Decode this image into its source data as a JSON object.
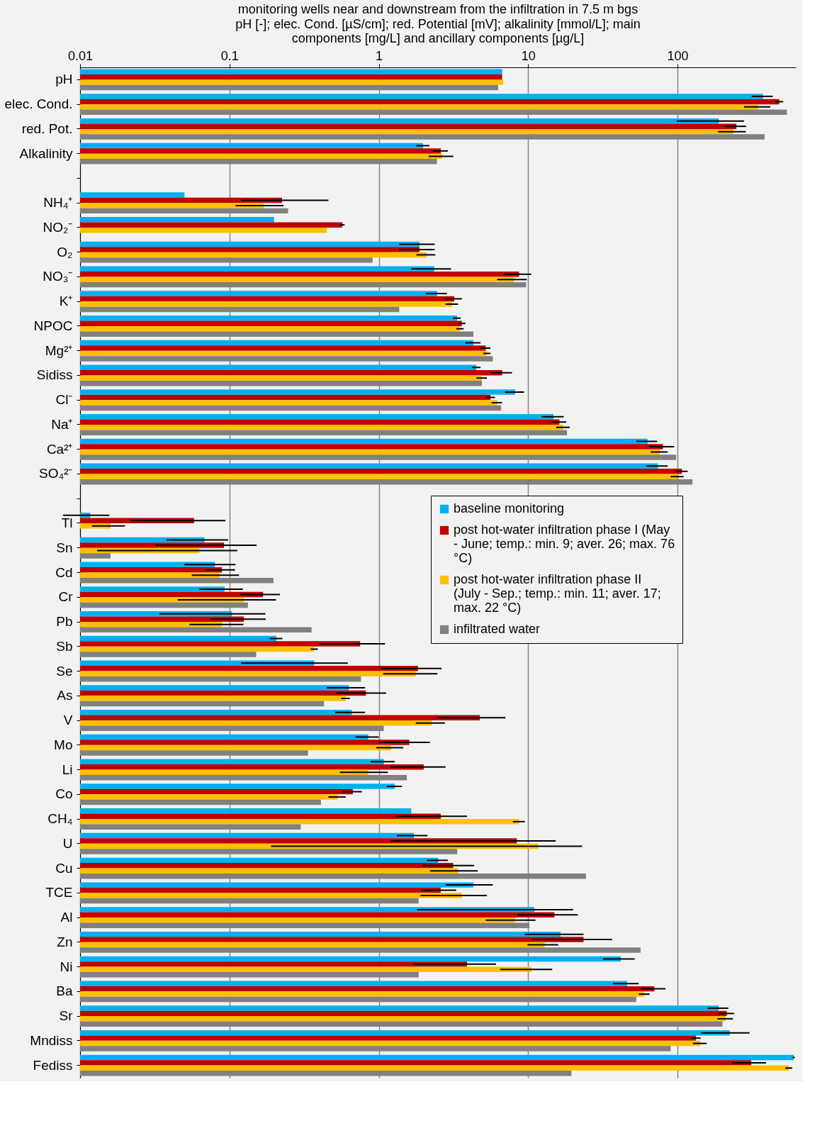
{
  "chart_data": {
    "type": "bar",
    "orientation": "horizontal",
    "title": "monitoring wells near and downstream from the infiltration in 7.5 m bgs",
    "subtitle": "pH [-]; elec. Cond. [µS/cm]; red. Potential [mV]; alkalinity [mmol/L]; main components [mg/L] and ancillary components [µg/L]",
    "categories": [
      "pH",
      "elec. Cond.",
      "red. Pot.",
      "Alkalinity",
      null,
      "NH₄⁺",
      "NO₂⁻",
      "O₂",
      "NO₃⁻",
      "K⁺",
      "NPOC",
      "Mg²⁺",
      "Sidiss",
      "Cl⁻",
      "Na⁺",
      "Ca²⁺",
      "SO₄²⁻",
      null,
      "Tl",
      "Sn",
      "Cd",
      "Cr",
      "Pb",
      "Sb",
      "Se",
      "As",
      "V",
      "Mo",
      "Li",
      "Co",
      "CH₄",
      "U",
      "Cu",
      "TCE",
      "Al",
      "Zn",
      "Ni",
      "Ba",
      "Sr",
      "Mndiss",
      "Fediss"
    ],
    "series": [
      {
        "name": "baseline monitoring",
        "color": "#00b0f0",
        "values": [
          6.7,
          374,
          189,
          1.98,
          null,
          0.05,
          0.199,
          1.87,
          2.35,
          2.46,
          3.34,
          4.3,
          4.5,
          8.2,
          14.8,
          63,
          74,
          null,
          0.0117,
          0.068,
          0.08,
          0.093,
          0.104,
          0.206,
          0.37,
          0.63,
          0.66,
          0.85,
          1.08,
          1.28,
          1.65,
          1.72,
          2.5,
          4.3,
          11,
          16.5,
          41.7,
          46,
          189,
          224,
          600
        ],
        "errors": [
          null,
          60,
          90,
          0.2,
          null,
          null,
          null,
          0.5,
          0.7,
          0.4,
          0.2,
          0.5,
          0.3,
          1.2,
          2.5,
          10,
          12,
          null,
          0.004,
          0.03,
          0.03,
          0.03,
          0.07,
          0.02,
          0.25,
          0.18,
          0.15,
          0.15,
          0.2,
          0.15,
          null,
          0.4,
          0.4,
          1.5,
          [
            1.8,
            20
          ],
          7,
          10,
          9,
          30,
          80,
          10
        ]
      },
      {
        "name": "post hot-water infiltration phase I (May - June; temp.: min. 9; aver. 26; max. 76 °C)",
        "color": "#c00000",
        "values": [
          6.7,
          480,
          248,
          2.6,
          null,
          0.225,
          0.57,
          1.87,
          8.7,
          3.2,
          3.6,
          5.2,
          6.7,
          5.6,
          16.2,
          80,
          107,
          null,
          0.058,
          0.092,
          0.089,
          0.168,
          0.125,
          0.75,
          1.83,
          0.82,
          4.75,
          1.6,
          2.0,
          0.67,
          2.6,
          8.4,
          3.15,
          2.6,
          15,
          23.5,
          3.9,
          70,
          214,
          133,
          312
        ],
        "errors": [
          null,
          30,
          40,
          0.3,
          null,
          [
            0.12,
            0.46
          ],
          0.02,
          0.5,
          1.8,
          0.4,
          0.2,
          0.4,
          1.1,
          0.4,
          1.8,
          15,
          10,
          null,
          0.036,
          0.06,
          0.02,
          0.05,
          0.05,
          0.35,
          0.8,
          0.3,
          2.3,
          0.6,
          0.8,
          0.1,
          1.3,
          [
            1.2,
            15.3
          ],
          1.2,
          0.7,
          6.5,
          13,
          2.2,
          13,
          25,
          10,
          80
        ]
      },
      {
        "name": "post hot-water infiltration phase II  (July - Sep.; temp.: min. 11; aver. 17; max. 22 °C)",
        "color": "#ffc000",
        "values": [
          6.8,
          349,
          237,
          2.66,
          null,
          0.17,
          0.45,
          2.09,
          8.0,
          3.1,
          3.5,
          5.3,
          4.9,
          6.2,
          17.2,
          76,
          100,
          null,
          0.016,
          0.063,
          0.086,
          0.125,
          0.089,
          0.37,
          1.77,
          0.6,
          2.27,
          1.21,
          0.85,
          0.53,
          8.7,
          11.7,
          3.4,
          3.6,
          8.2,
          12.9,
          10.5,
          60,
          210,
          142,
          557
        ],
        "errors": [
          null,
          70,
          50,
          0.5,
          null,
          0.06,
          null,
          0.3,
          1.8,
          0.3,
          0.2,
          0.3,
          0.4,
          0.5,
          1.8,
          10,
          10,
          null,
          0.004,
          0.05,
          0.03,
          0.08,
          0.035,
          0.02,
          0.7,
          0.04,
          0.5,
          0.25,
          0.3,
          0.07,
          0.8,
          [
            0.19,
            23
          ],
          1.2,
          1.7,
          3,
          3,
          4,
          5,
          25,
          15,
          30
        ]
      },
      {
        "name": "infiltrated water",
        "color": "#808080",
        "values": [
          6.3,
          540,
          383,
          2.45,
          null,
          0.247,
          null,
          0.91,
          9.7,
          1.37,
          4.3,
          5.8,
          4.9,
          6.6,
          18.2,
          98,
          126,
          null,
          null,
          0.016,
          0.197,
          0.133,
          0.355,
          0.151,
          0.76,
          0.43,
          1.08,
          0.336,
          1.54,
          0.41,
          0.3,
          3.35,
          24.4,
          1.85,
          10.2,
          56.6,
          1.85,
          53,
          200,
          90,
          19.5
        ]
      }
    ],
    "xlim": [
      0.01,
      620
    ],
    "xticks": [
      0.01,
      0.1,
      1,
      10,
      100
    ],
    "log": "x",
    "grid": "x",
    "legend": "right"
  }
}
